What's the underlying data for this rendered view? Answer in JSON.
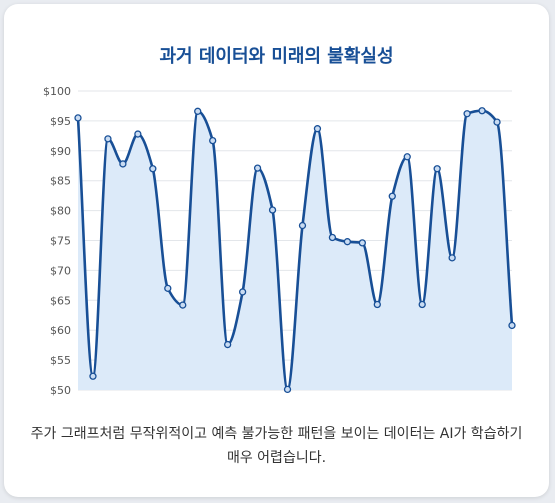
{
  "title": "과거 데이터와 미래의 불확실성",
  "caption": "주가 그래프처럼 무작위적이고 예측 불가능한 패턴을 보이는 데이터는 AI가 학습하기 매우 어렵습니다.",
  "chart_data": {
    "type": "area",
    "title": "과거 데이터와 미래의 불확실성",
    "ylim": [
      50,
      100
    ],
    "y_ticks": [
      "$50",
      "$55",
      "$60",
      "$65",
      "$70",
      "$75",
      "$80",
      "$85",
      "$90",
      "$95",
      "$100"
    ],
    "grid": true,
    "colors": {
      "line": "#184f96",
      "fill": "#dceaf9",
      "grid": "#e3e6ea"
    },
    "series": [
      {
        "values": [
          95.5,
          52.3,
          92,
          87.8,
          92.8,
          87,
          67,
          64.2,
          96.6,
          91.7,
          57.6,
          66.4,
          87.1,
          80.1,
          50.1,
          77.5,
          93.7,
          75.5,
          74.8,
          74.6,
          64.3,
          82.4,
          89,
          64.3,
          87,
          72.1,
          96.2,
          96.7,
          94.8,
          60.8
        ]
      }
    ]
  }
}
